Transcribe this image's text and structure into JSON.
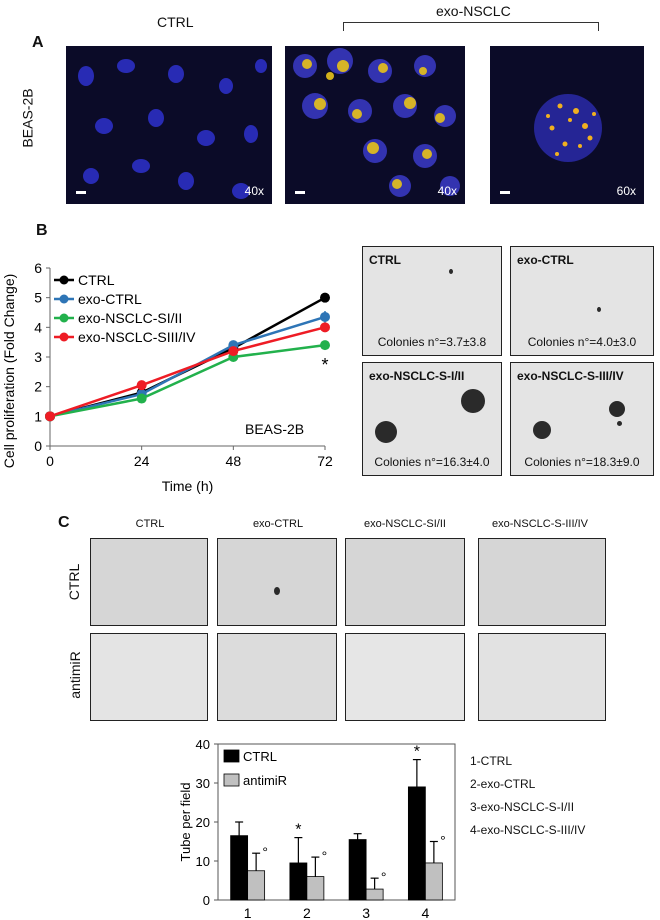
{
  "panelA": {
    "letter": "A",
    "ctrl_label": "CTRL",
    "exo_label": "exo-NSCLC",
    "row_label": "BEAS-2B",
    "images": [
      {
        "mag": "40x"
      },
      {
        "mag": "40x"
      },
      {
        "mag": "60x"
      }
    ]
  },
  "panelB": {
    "letter": "B",
    "colonies": [
      {
        "title": "CTRL",
        "count": "Colonies n°=3.7±3.8"
      },
      {
        "title": "exo-CTRL",
        "count": "Colonies n°=4.0±3.0"
      },
      {
        "title": "exo-NSCLC-S-I/II",
        "count": "Colonies n°=16.3±4.0"
      },
      {
        "title": "exo-NSCLC-S-III/IV",
        "count": "Colonies n°=18.3±9.0"
      }
    ]
  },
  "panelC": {
    "letter": "C",
    "columns": [
      "CTRL",
      "exo-CTRL",
      "exo-NSCLC-SI/II",
      "exo-NSCLC-S-III/IV"
    ],
    "rows": [
      "CTRL",
      "antimiR"
    ],
    "key": [
      "1-CTRL",
      "2-exo-CTRL",
      "3-exo-NSCLC-S-I/II",
      "4-exo-NSCLC-S-III/IV"
    ]
  },
  "chart_data": [
    {
      "type": "line",
      "xlabel": "Time (h)",
      "ylabel": "Cell proliferation (Fold Change)",
      "x": [
        0,
        24,
        48,
        72
      ],
      "xticks": [
        "0",
        "24",
        "48",
        "72"
      ],
      "yticks": [
        "0",
        "1",
        "2",
        "3",
        "4",
        "5",
        "6"
      ],
      "xlim": [
        0,
        72
      ],
      "ylim": [
        0,
        6
      ],
      "annotation": "BEAS-2B",
      "significance": "*",
      "legend_position": "top-left",
      "series": [
        {
          "name": "CTRL",
          "color": "#000000",
          "values": [
            1.0,
            1.8,
            3.3,
            5.0
          ],
          "err": [
            0,
            0,
            0,
            0.1
          ]
        },
        {
          "name": "exo-CTRL",
          "color": "#2e75b6",
          "values": [
            1.0,
            1.75,
            3.4,
            4.35
          ],
          "err": [
            0,
            0,
            0.15,
            0.2
          ]
        },
        {
          "name": "exo-NSCLC-SI/II",
          "color": "#22b14c",
          "values": [
            1.0,
            1.6,
            3.0,
            3.4
          ],
          "err": [
            0,
            0,
            0,
            0.15
          ]
        },
        {
          "name": "exo-NSCLC-SIII/IV",
          "color": "#ee1c25",
          "values": [
            1.0,
            2.05,
            3.2,
            4.0
          ],
          "err": [
            0,
            0,
            0,
            0
          ]
        }
      ]
    },
    {
      "type": "bar",
      "ylabel": "Tube per field",
      "categories": [
        "1",
        "2",
        "3",
        "4"
      ],
      "yticks": [
        "0",
        "10",
        "20",
        "30",
        "40"
      ],
      "ylim": [
        0,
        40
      ],
      "legend_position": "top-left",
      "series": [
        {
          "name": "CTRL",
          "color": "#000000",
          "values": [
            16.5,
            9.5,
            15.5,
            29
          ],
          "err": [
            3.5,
            6.5,
            1.5,
            7
          ],
          "marks": [
            "",
            "*",
            "",
            "*"
          ]
        },
        {
          "name": "antimiR",
          "color": "#c0c0c0",
          "values": [
            7.5,
            6,
            2.8,
            9.5
          ],
          "err": [
            4.5,
            5,
            2.8,
            5.5
          ],
          "marks": [
            "°",
            "°",
            "°",
            "°"
          ]
        }
      ]
    }
  ]
}
